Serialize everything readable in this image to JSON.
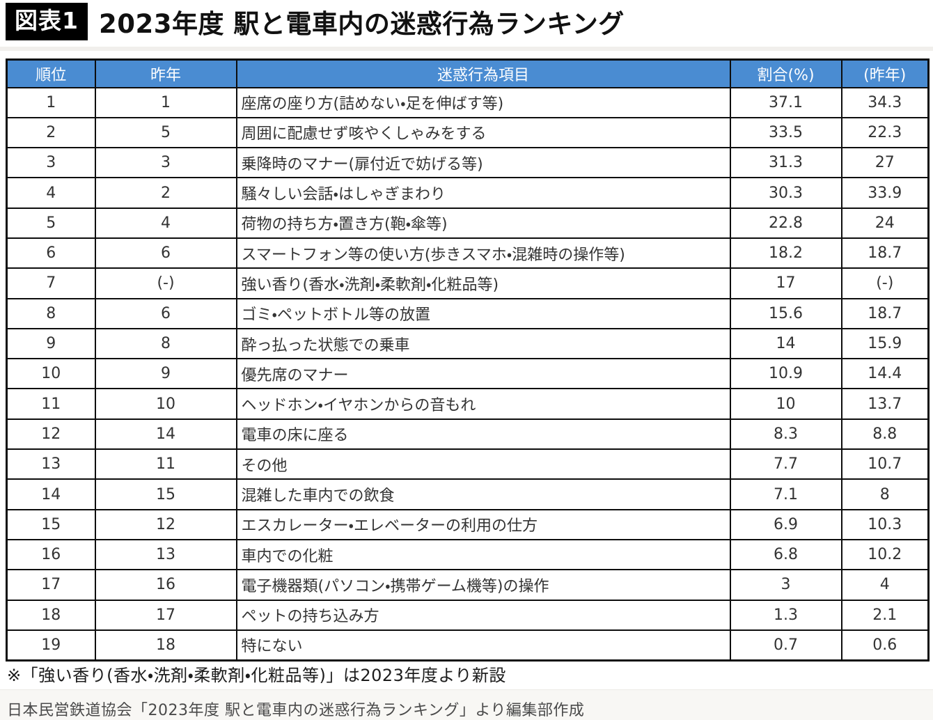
{
  "page": {
    "figure_label": "図表1",
    "title": "2023年度 駅と電車内の迷惑行為ランキング",
    "footnote": "※「強い香り(香水・洗剤・柔軟剤・化粧品等)」は2023年度より新設",
    "source": "日本民営鉄道協会「2023年度 駅と電車内の迷惑行為ランキング」より編集部作成"
  },
  "colors": {
    "header_bg": "#4a8cd2",
    "header_text": "#fdfeff",
    "grid_border": "#0d0d0d",
    "cell_text": "#333333",
    "label_box_bg": "#000000",
    "label_box_text": "#ffffff"
  },
  "chart_data": {
    "type": "table",
    "title": "2023年度 駅と電車内の迷惑行為ランキング",
    "columns": [
      "順位",
      "昨年",
      "迷惑行為項目",
      "割合(%)",
      "(昨年)"
    ],
    "rows": [
      {
        "rank": "1",
        "last_year_rank": "1",
        "item": "座席の座り方(詰めない・足を伸ばす等)",
        "pct": "37.1",
        "pct_last_year": "34.3"
      },
      {
        "rank": "2",
        "last_year_rank": "5",
        "item": "周囲に配慮せず咳やくしゃみをする",
        "pct": "33.5",
        "pct_last_year": "22.3"
      },
      {
        "rank": "3",
        "last_year_rank": "3",
        "item": "乗降時のマナー(扉付近で妨げる等)",
        "pct": "31.3",
        "pct_last_year": "27"
      },
      {
        "rank": "4",
        "last_year_rank": "2",
        "item": "騒々しい会話・はしゃぎまわり",
        "pct": "30.3",
        "pct_last_year": "33.9"
      },
      {
        "rank": "5",
        "last_year_rank": "4",
        "item": "荷物の持ち方・置き方(鞄・傘等)",
        "pct": "22.8",
        "pct_last_year": "24"
      },
      {
        "rank": "6",
        "last_year_rank": "6",
        "item": "スマートフォン等の使い方(歩きスマホ・混雑時の操作等)",
        "pct": "18.2",
        "pct_last_year": "18.7"
      },
      {
        "rank": "7",
        "last_year_rank": "(-)",
        "item": "強い香り(香水・洗剤・柔軟剤・化粧品等)",
        "pct": "17",
        "pct_last_year": "(-)"
      },
      {
        "rank": "8",
        "last_year_rank": "6",
        "item": "ゴミ・ペットボトル等の放置",
        "pct": "15.6",
        "pct_last_year": "18.7"
      },
      {
        "rank": "9",
        "last_year_rank": "8",
        "item": "酔っ払った状態での乗車",
        "pct": "14",
        "pct_last_year": "15.9"
      },
      {
        "rank": "10",
        "last_year_rank": "9",
        "item": "優先席のマナー",
        "pct": "10.9",
        "pct_last_year": "14.4"
      },
      {
        "rank": "11",
        "last_year_rank": "10",
        "item": "ヘッドホン・イヤホンからの音もれ",
        "pct": "10",
        "pct_last_year": "13.7"
      },
      {
        "rank": "12",
        "last_year_rank": "14",
        "item": "電車の床に座る",
        "pct": "8.3",
        "pct_last_year": "8.8"
      },
      {
        "rank": "13",
        "last_year_rank": "11",
        "item": "その他",
        "pct": "7.7",
        "pct_last_year": "10.7"
      },
      {
        "rank": "14",
        "last_year_rank": "15",
        "item": "混雑した車内での飲食",
        "pct": "7.1",
        "pct_last_year": "8"
      },
      {
        "rank": "15",
        "last_year_rank": "12",
        "item": "エスカレーター・エレベーターの利用の仕方",
        "pct": "6.9",
        "pct_last_year": "10.3"
      },
      {
        "rank": "16",
        "last_year_rank": "13",
        "item": "車内での化粧",
        "pct": "6.8",
        "pct_last_year": "10.2"
      },
      {
        "rank": "17",
        "last_year_rank": "16",
        "item": "電子機器類(パソコン・携帯ゲーム機等)の操作",
        "pct": "3",
        "pct_last_year": "4"
      },
      {
        "rank": "18",
        "last_year_rank": "17",
        "item": "ペットの持ち込み方",
        "pct": "1.3",
        "pct_last_year": "2.1"
      },
      {
        "rank": "19",
        "last_year_rank": "18",
        "item": "特にない",
        "pct": "0.7",
        "pct_last_year": "0.6"
      }
    ]
  }
}
